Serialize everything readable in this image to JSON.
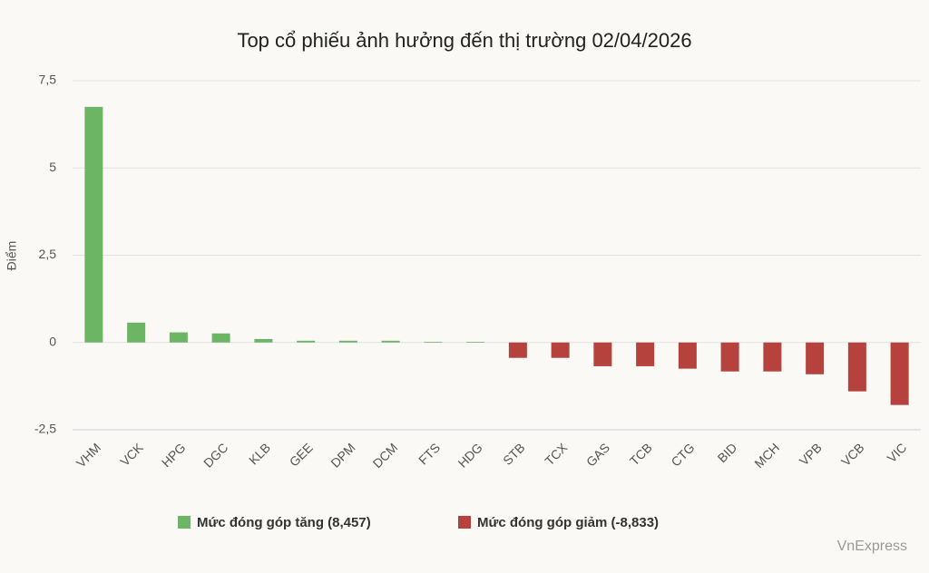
{
  "chart_data": {
    "type": "bar",
    "title": "Top cổ phiếu ảnh hưởng đến thị trường 02/04/2026",
    "y_label": "Điểm",
    "categories": [
      "VHM",
      "VCK",
      "HPG",
      "DGC",
      "KLB",
      "GEE",
      "DPM",
      "DCM",
      "FTS",
      "HDG",
      "STB",
      "TCX",
      "GAS",
      "TCB",
      "CTG",
      "BID",
      "MCH",
      "VPB",
      "VCB",
      "VIC"
    ],
    "series": [
      {
        "name": "Mức đóng góp tăng (8,457)",
        "color": "#6cb565",
        "values": [
          6.75,
          0.57,
          0.29,
          0.26,
          0.1,
          0.05,
          0.05,
          0.05,
          0.02,
          0.02,
          null,
          null,
          null,
          null,
          null,
          null,
          null,
          null,
          null,
          null
        ]
      },
      {
        "name": "Mức đóng góp giảm (-8,833)",
        "color": "#b5423c",
        "values": [
          null,
          null,
          null,
          null,
          null,
          null,
          null,
          null,
          null,
          null,
          -0.44,
          -0.44,
          -0.68,
          -0.68,
          -0.75,
          -0.83,
          -0.83,
          -0.91,
          -1.4,
          -1.79
        ]
      }
    ],
    "ylim": [
      -2.5,
      7.5
    ],
    "yticks": [
      {
        "value": -2.5,
        "label": "-2,5"
      },
      0,
      {
        "value": 2.5,
        "label": "2,5"
      },
      5,
      {
        "value": 7.5,
        "label": "7,5"
      }
    ],
    "grid": true,
    "legend": "bottom",
    "source": "VnExpress"
  }
}
